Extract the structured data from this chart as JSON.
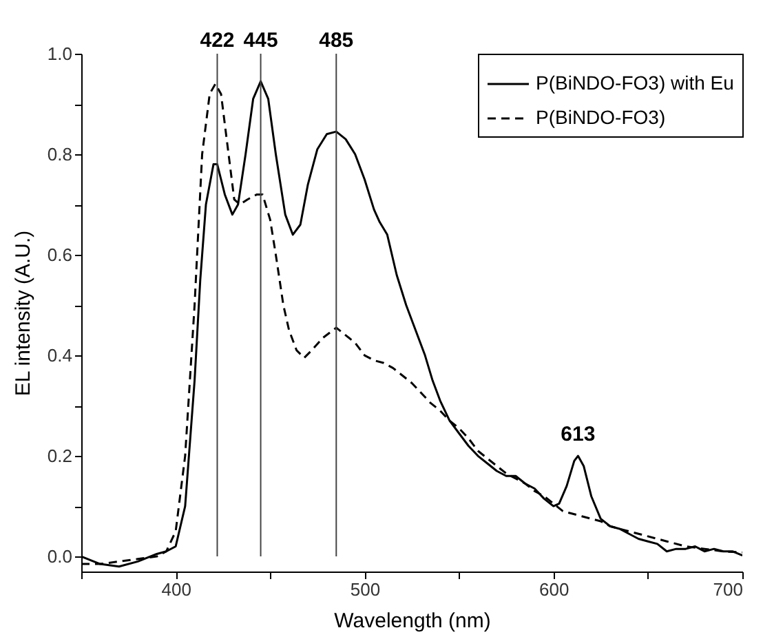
{
  "chart_data": {
    "type": "line",
    "xlabel": "Wavelength (nm)",
    "ylabel": "EL intensity (A.U.)",
    "xlim": [
      350,
      700
    ],
    "xticks": [
      {
        "value": 350,
        "label": null
      },
      400,
      {
        "value": 450,
        "label": null
      },
      500,
      {
        "value": 550,
        "label": null
      },
      600,
      {
        "value": 650,
        "label": null
      },
      700
    ],
    "ylim": [
      -0.03,
      1.0
    ],
    "yticks": [
      {
        "value": 0,
        "label": "0.0"
      },
      {
        "value": 0.1,
        "label": null
      },
      0.2,
      {
        "value": 0.3,
        "label": null
      },
      0.4,
      {
        "value": 0.5,
        "label": null
      },
      0.6,
      {
        "value": 0.7,
        "label": null
      },
      0.8,
      {
        "value": 0.9,
        "label": null
      },
      {
        "value": 1.0,
        "label": "1.0"
      }
    ],
    "grid": false,
    "legend": "top right",
    "marker": "none",
    "series": [
      {
        "name": "P(BiNDO-FO3) with Eu",
        "color": "#000000",
        "line_style": "solid",
        "x": [
          350,
          360,
          370,
          380,
          390,
          395,
          400,
          405,
          410,
          413,
          416,
          420,
          422,
          426,
          430,
          433,
          437,
          441,
          445,
          449,
          453,
          458,
          462,
          466,
          470,
          475,
          480,
          485,
          490,
          495,
          500,
          505,
          508,
          512,
          517,
          522,
          527,
          532,
          536,
          540,
          545,
          550,
          555,
          560,
          565,
          570,
          575,
          580,
          585,
          590,
          595,
          600,
          603,
          607,
          611,
          613,
          616,
          620,
          625,
          630,
          635,
          640,
          645,
          650,
          655,
          660,
          665,
          670,
          675,
          680,
          685,
          690,
          695,
          700
        ],
        "values": [
          0.0,
          -0.015,
          -0.02,
          -0.01,
          0.005,
          0.01,
          0.02,
          0.1,
          0.35,
          0.55,
          0.7,
          0.78,
          0.78,
          0.72,
          0.68,
          0.7,
          0.8,
          0.91,
          0.945,
          0.91,
          0.8,
          0.68,
          0.64,
          0.66,
          0.74,
          0.81,
          0.84,
          0.845,
          0.83,
          0.8,
          0.75,
          0.69,
          0.665,
          0.64,
          0.56,
          0.5,
          0.45,
          0.4,
          0.35,
          0.31,
          0.27,
          0.245,
          0.22,
          0.2,
          0.185,
          0.17,
          0.16,
          0.16,
          0.145,
          0.135,
          0.115,
          0.1,
          0.105,
          0.14,
          0.19,
          0.2,
          0.18,
          0.12,
          0.075,
          0.06,
          0.055,
          0.045,
          0.035,
          0.03,
          0.025,
          0.01,
          0.015,
          0.015,
          0.02,
          0.01,
          0.015,
          0.01,
          0.01,
          0.002
        ]
      },
      {
        "name": "P(BiNDO-FO3)",
        "color": "#000000",
        "line_style": "dashed",
        "x": [
          350,
          360,
          370,
          380,
          390,
          395,
          400,
          405,
          410,
          414,
          418,
          421,
          424,
          428,
          431,
          434,
          438,
          443,
          446,
          450,
          453,
          457,
          460,
          464,
          468,
          472,
          478,
          485,
          490,
          495,
          500,
          505,
          510,
          515,
          520,
          525,
          530,
          535,
          540,
          545,
          550,
          555,
          560,
          565,
          570,
          575,
          580,
          585,
          590,
          595,
          600,
          605,
          610,
          615,
          620,
          625,
          630,
          640,
          650,
          660,
          670,
          680,
          690,
          700
        ],
        "values": [
          -0.015,
          -0.015,
          -0.01,
          -0.005,
          0.0,
          0.01,
          0.05,
          0.2,
          0.5,
          0.8,
          0.92,
          0.94,
          0.92,
          0.8,
          0.71,
          0.7,
          0.71,
          0.72,
          0.72,
          0.67,
          0.6,
          0.5,
          0.45,
          0.41,
          0.395,
          0.41,
          0.435,
          0.455,
          0.44,
          0.425,
          0.4,
          0.39,
          0.385,
          0.375,
          0.36,
          0.345,
          0.325,
          0.305,
          0.29,
          0.27,
          0.255,
          0.235,
          0.21,
          0.195,
          0.18,
          0.165,
          0.155,
          0.145,
          0.13,
          0.12,
          0.105,
          0.09,
          0.085,
          0.08,
          0.075,
          0.07,
          0.06,
          0.05,
          0.04,
          0.03,
          0.02,
          0.015,
          0.01,
          0.008
        ]
      }
    ],
    "ref_lines": [
      {
        "axis": "x",
        "value": 422,
        "label": "422"
      },
      {
        "axis": "x",
        "value": 445,
        "label": "445"
      },
      {
        "axis": "x",
        "value": 485,
        "label": "485"
      }
    ],
    "annotations": [
      {
        "text": "613",
        "x": 613,
        "y": 0.2
      }
    ]
  }
}
